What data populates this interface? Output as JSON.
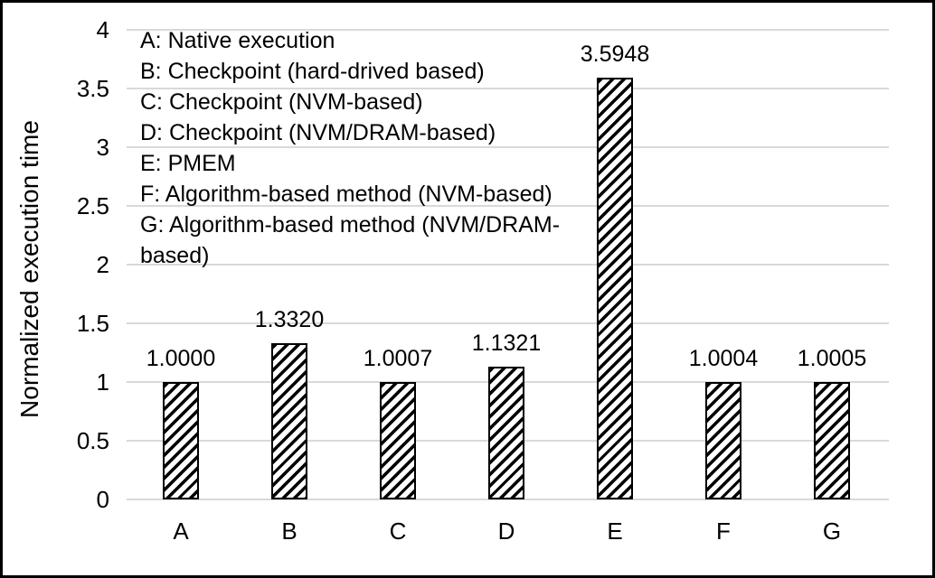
{
  "chart_data": {
    "type": "bar",
    "categories": [
      "A",
      "B",
      "C",
      "D",
      "E",
      "F",
      "G"
    ],
    "values": [
      1.0,
      1.332,
      1.0007,
      1.1321,
      3.5948,
      1.0004,
      1.0005
    ],
    "value_labels": [
      "1.0000",
      "1.3320",
      "1.0007",
      "1.1321",
      "3.5948",
      "1.0004",
      "1.0005"
    ],
    "title": "",
    "xlabel": "",
    "ylabel": "Normalized execution time",
    "ylim": [
      0,
      4
    ],
    "ytick_step": 0.5,
    "yticks": [
      "0",
      "0.5",
      "1",
      "1.5",
      "2",
      "2.5",
      "3",
      "3.5",
      "4"
    ],
    "grid": "horizontal",
    "legend_position": "top-left-inside",
    "legend_entries": [
      "A: Native execution",
      "B: Checkpoint (hard-drived based)",
      "C: Checkpoint (NVM-based)",
      "D: Checkpoint (NVM/DRAM-based)",
      "E: PMEM",
      "F: Algorithm-based method (NVM-based)",
      "G: Algorithm-based method (NVM/DRAM-based)"
    ],
    "bar_style": "diagonal-hatch",
    "colors": {
      "bar_outline": "#000000",
      "bar_hatch": "#000000",
      "bar_fill": "#ffffff",
      "gridline": "#d9d9d9",
      "text": "#000000",
      "frame_border": "#000000",
      "background": "#ffffff"
    }
  }
}
